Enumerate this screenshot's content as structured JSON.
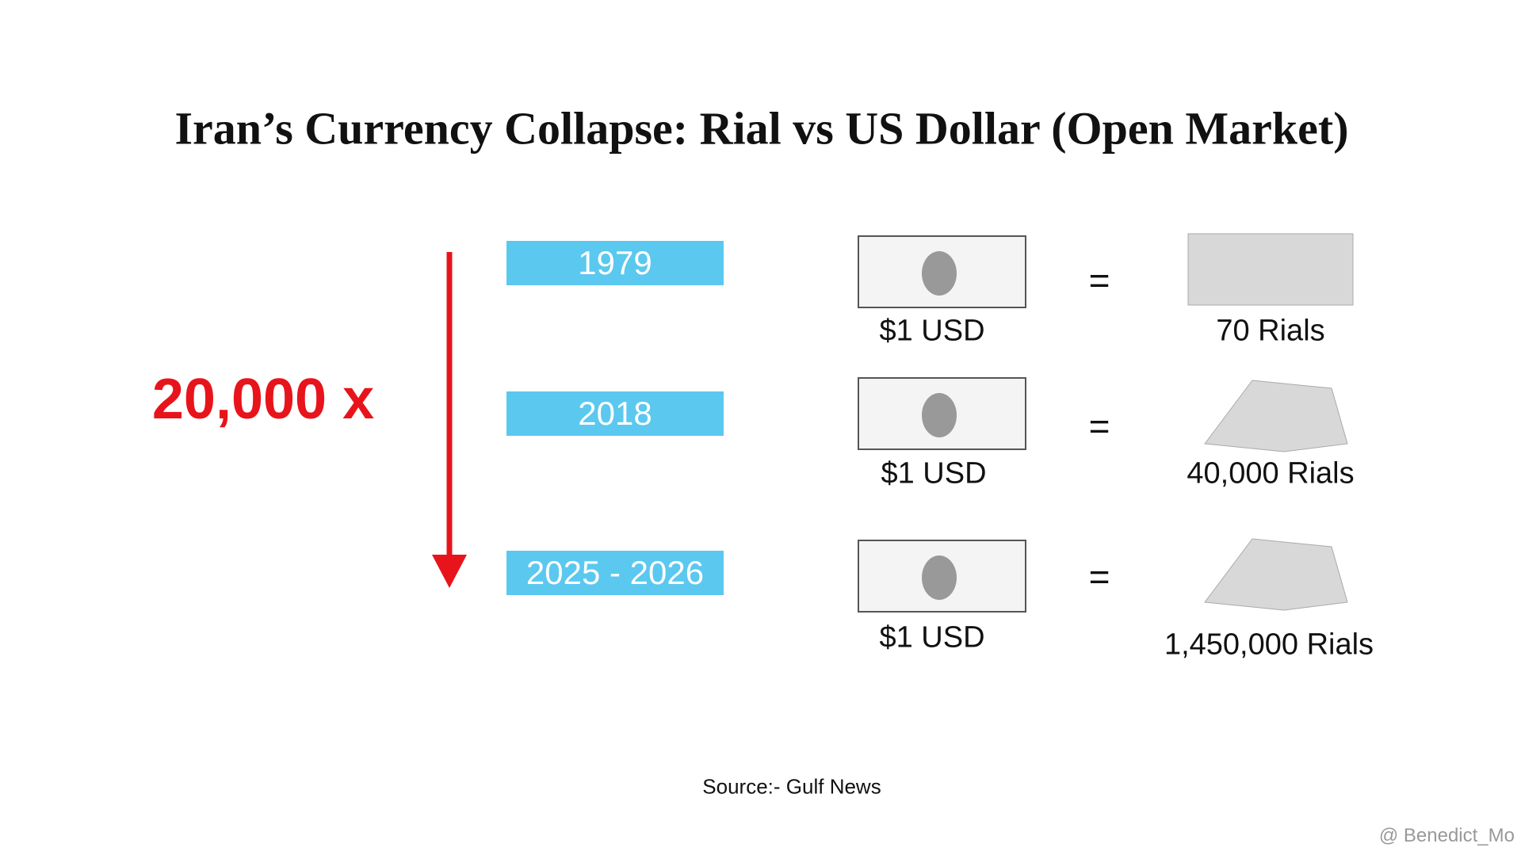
{
  "header": {
    "title": "Iran’s Currency Collapse: Rial vs US Dollar (Open Market)"
  },
  "multiplier": "20,000 x",
  "rows": [
    {
      "year": "1979",
      "usd": "$1 USD",
      "equals": "=",
      "rials": "70 Rials"
    },
    {
      "year": "2018",
      "usd": "$1 USD",
      "equals": "=",
      "rials": "40,000 Rials"
    },
    {
      "year": "2025 - 2026",
      "usd": "$1 USD",
      "equals": "=",
      "rials": "1,450,000 Rials"
    }
  ],
  "source": "Source:- Gulf News",
  "watermark": "@ Benedict_Mo"
}
